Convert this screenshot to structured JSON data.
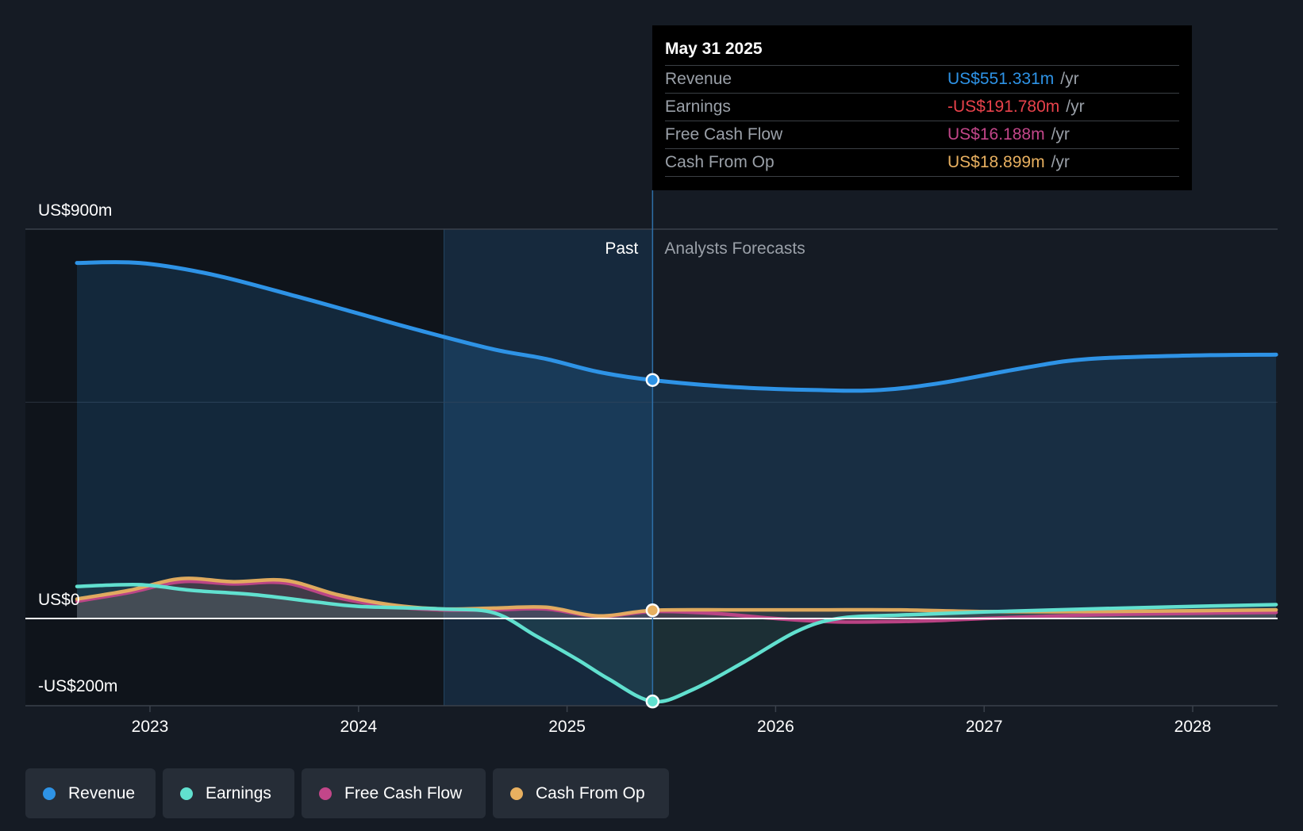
{
  "chart_data": {
    "type": "line",
    "y_axis": {
      "top_label": "US$900m",
      "zero_label": "US$0",
      "bottom_label": "-US$200m",
      "range_millions": [
        -200,
        900
      ],
      "gridline_millions": 500
    },
    "x_axis": {
      "ticks": [
        "2023",
        "2024",
        "2025",
        "2026",
        "2027",
        "2028"
      ],
      "range_years": [
        2022.4,
        2028.4
      ]
    },
    "divider": {
      "year": 2025.41,
      "past_label": "Past",
      "forecast_label": "Analysts Forecasts",
      "past_region_start_year": 2024.41
    },
    "series": [
      {
        "name": "Revenue",
        "color": "#2e93e6",
        "points": [
          [
            2022.65,
            822
          ],
          [
            2022.95,
            822
          ],
          [
            2023.3,
            795
          ],
          [
            2023.7,
            745
          ],
          [
            2024.0,
            705
          ],
          [
            2024.3,
            665
          ],
          [
            2024.65,
            622
          ],
          [
            2024.9,
            600
          ],
          [
            2025.15,
            570
          ],
          [
            2025.41,
            551
          ],
          [
            2025.8,
            535
          ],
          [
            2026.2,
            528
          ],
          [
            2026.5,
            528
          ],
          [
            2026.8,
            545
          ],
          [
            2027.2,
            580
          ],
          [
            2027.5,
            600
          ],
          [
            2028.0,
            608
          ],
          [
            2028.4,
            610
          ]
        ]
      },
      {
        "name": "Earnings",
        "color": "#61e0cf",
        "points": [
          [
            2022.65,
            74
          ],
          [
            2022.95,
            78
          ],
          [
            2023.2,
            65
          ],
          [
            2023.5,
            55
          ],
          [
            2023.8,
            38
          ],
          [
            2024.0,
            28
          ],
          [
            2024.4,
            22
          ],
          [
            2024.65,
            13
          ],
          [
            2024.85,
            -40
          ],
          [
            2025.05,
            -95
          ],
          [
            2025.2,
            -140
          ],
          [
            2025.41,
            -191.78
          ],
          [
            2025.6,
            -165
          ],
          [
            2025.85,
            -100
          ],
          [
            2026.1,
            -30
          ],
          [
            2026.3,
            0
          ],
          [
            2026.6,
            8
          ],
          [
            2027.0,
            15
          ],
          [
            2027.5,
            22
          ],
          [
            2028.0,
            28
          ],
          [
            2028.4,
            32
          ]
        ]
      },
      {
        "name": "Free Cash Flow",
        "color": "#c24689",
        "points": [
          [
            2022.65,
            40
          ],
          [
            2022.9,
            60
          ],
          [
            2023.15,
            85
          ],
          [
            2023.4,
            80
          ],
          [
            2023.65,
            82
          ],
          [
            2023.9,
            48
          ],
          [
            2024.15,
            28
          ],
          [
            2024.4,
            20
          ],
          [
            2024.65,
            20
          ],
          [
            2024.9,
            22
          ],
          [
            2025.15,
            5
          ],
          [
            2025.41,
            16.188
          ],
          [
            2025.7,
            12
          ],
          [
            2026.0,
            0
          ],
          [
            2026.3,
            -8
          ],
          [
            2026.7,
            -6
          ],
          [
            2027.0,
            0
          ],
          [
            2027.5,
            8
          ],
          [
            2028.0,
            12
          ],
          [
            2028.4,
            14
          ]
        ]
      },
      {
        "name": "Cash From Op",
        "color": "#e8b060",
        "points": [
          [
            2022.65,
            45
          ],
          [
            2022.9,
            65
          ],
          [
            2023.15,
            92
          ],
          [
            2023.4,
            85
          ],
          [
            2023.65,
            88
          ],
          [
            2023.9,
            55
          ],
          [
            2024.15,
            32
          ],
          [
            2024.4,
            22
          ],
          [
            2024.65,
            24
          ],
          [
            2024.9,
            26
          ],
          [
            2025.15,
            6
          ],
          [
            2025.41,
            18.899
          ],
          [
            2025.8,
            20
          ],
          [
            2026.2,
            20
          ],
          [
            2026.6,
            20
          ],
          [
            2027.0,
            16
          ],
          [
            2027.5,
            16
          ],
          [
            2028.0,
            18
          ],
          [
            2028.4,
            20
          ]
        ]
      }
    ]
  },
  "tooltip": {
    "date": "May 31 2025",
    "rows": [
      {
        "label": "Revenue",
        "value": "US$551.331m",
        "unit": "/yr",
        "color": "#2e93e6"
      },
      {
        "label": "Earnings",
        "value": "-US$191.780m",
        "unit": "/yr",
        "color": "#e8424b"
      },
      {
        "label": "Free Cash Flow",
        "value": "US$16.188m",
        "unit": "/yr",
        "color": "#c24689"
      },
      {
        "label": "Cash From Op",
        "value": "US$18.899m",
        "unit": "/yr",
        "color": "#e8b060"
      }
    ]
  },
  "legend": [
    {
      "label": "Revenue",
      "color": "#2e93e6"
    },
    {
      "label": "Earnings",
      "color": "#61e0cf"
    },
    {
      "label": "Free Cash Flow",
      "color": "#c24689"
    },
    {
      "label": "Cash From Op",
      "color": "#e8b060"
    }
  ]
}
